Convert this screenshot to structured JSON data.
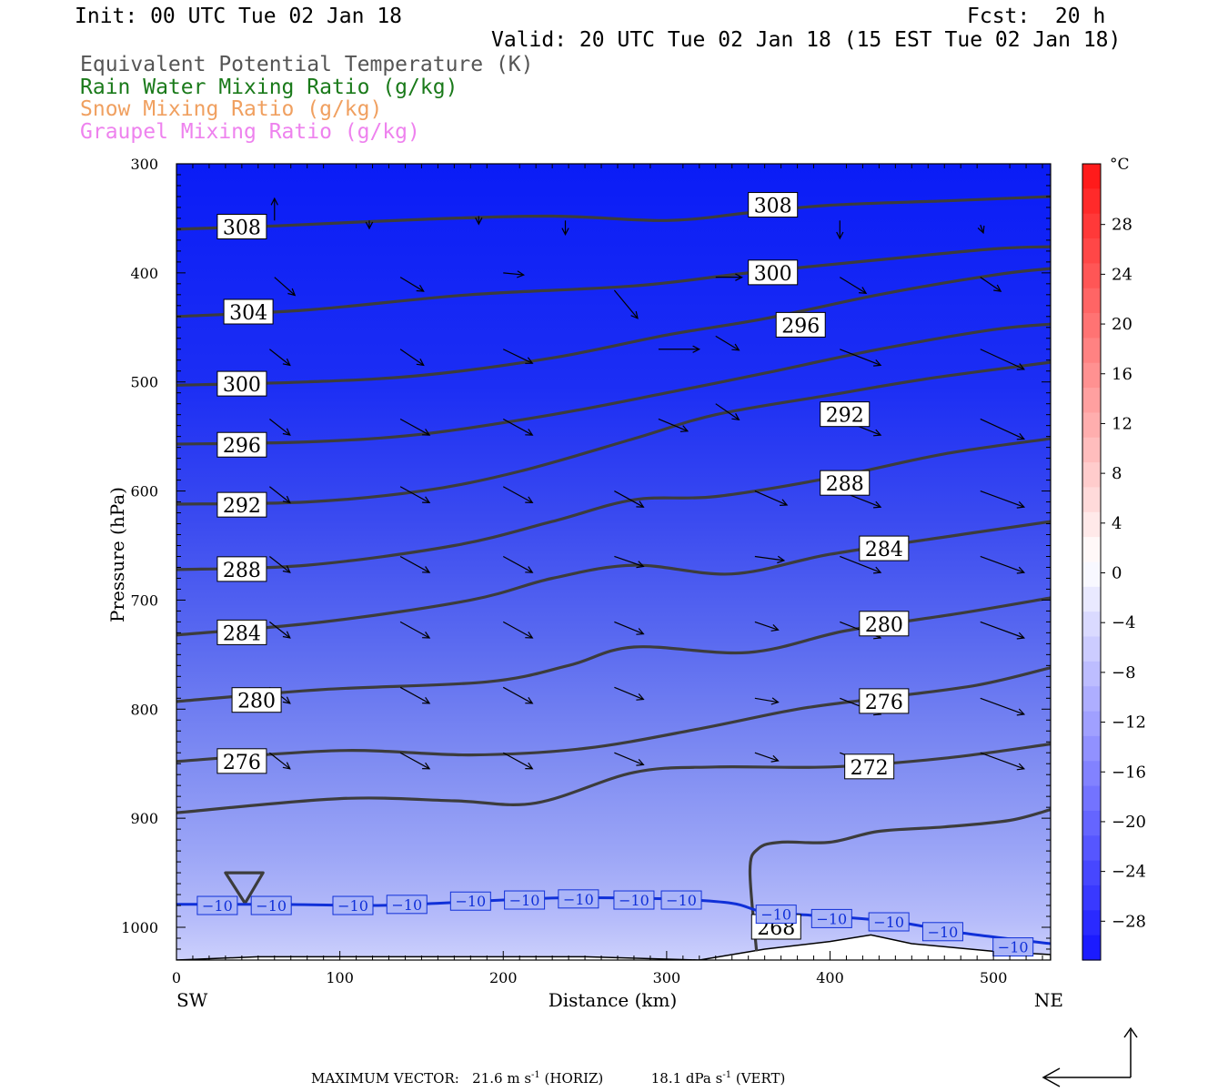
{
  "header": {
    "init": "Init: 00 UTC Tue 02 Jan 18",
    "fcst": "Fcst:  20 h",
    "valid": "Valid: 20 UTC Tue 02 Jan 18 (15 EST Tue 02 Jan 18)"
  },
  "legend": [
    {
      "label": "Equivalent Potential Temperature (K)",
      "color": "#555555"
    },
    {
      "label": "Rain Water Mixing Ratio (g/kg)",
      "color": "#1a7a1a"
    },
    {
      "label": "Snow Mixing Ratio (g/kg)",
      "color": "#f0a060"
    },
    {
      "label": "Graupel Mixing Ratio (g/kg)",
      "color": "#ee82ee"
    }
  ],
  "footer": {
    "max_vector_label": "MAXIMUM VECTOR:",
    "horiz_value": "21.6 m s",
    "horiz_unit": "(HORIZ)",
    "vert_value": "18.1 dPa s",
    "vert_unit": "(VERT)",
    "exponent": "-1"
  },
  "chart_data": {
    "type": "contour",
    "xlabel": "Distance (km)",
    "ylabel": "Pressure (hPa)",
    "xlim": [
      0,
      535
    ],
    "ylim": [
      1030,
      300
    ],
    "x_ticks": [
      0,
      100,
      200,
      300,
      400,
      500
    ],
    "y_ticks": [
      300,
      400,
      500,
      600,
      700,
      800,
      900,
      1000
    ],
    "endpoints": {
      "left": "SW",
      "right": "NE"
    },
    "colorbar": {
      "unit": "°C",
      "tick_labels": [
        "28",
        "24",
        "20",
        "16",
        "12",
        "8",
        "4",
        "0",
        "−4",
        "−8",
        "−12",
        "−16",
        "−20",
        "−24",
        "−28"
      ],
      "tick_values": [
        28,
        24,
        20,
        16,
        12,
        8,
        4,
        0,
        -4,
        -8,
        -12,
        -16,
        -20,
        -24,
        -28
      ],
      "range": [
        -32,
        32
      ]
    },
    "theta_e_contours": [
      {
        "value": 308,
        "label": "308",
        "points": [
          [
            0,
            360
          ],
          [
            60,
            357
          ],
          [
            150,
            351
          ],
          [
            230,
            348
          ],
          [
            300,
            352
          ],
          [
            350,
            345
          ],
          [
            400,
            338
          ],
          [
            470,
            334
          ],
          [
            535,
            330
          ]
        ]
      },
      {
        "value": 304,
        "label": "304",
        "points": [
          [
            0,
            440
          ],
          [
            80,
            434
          ],
          [
            180,
            420
          ],
          [
            280,
            412
          ],
          [
            350,
            400
          ],
          [
            430,
            388
          ],
          [
            500,
            378
          ],
          [
            535,
            376
          ]
        ]
      },
      {
        "value": 300,
        "label": "300",
        "points": [
          [
            0,
            503
          ],
          [
            80,
            500
          ],
          [
            150,
            494
          ],
          [
            230,
            478
          ],
          [
            300,
            457
          ],
          [
            360,
            442
          ],
          [
            430,
            420
          ],
          [
            500,
            402
          ],
          [
            535,
            396
          ]
        ]
      },
      {
        "value": 296,
        "label": "296",
        "points": [
          [
            0,
            557
          ],
          [
            80,
            555
          ],
          [
            150,
            548
          ],
          [
            230,
            530
          ],
          [
            300,
            510
          ],
          [
            360,
            492
          ],
          [
            430,
            470
          ],
          [
            500,
            452
          ],
          [
            535,
            447
          ]
        ]
      },
      {
        "value": 292,
        "label": "292",
        "points": [
          [
            0,
            612
          ],
          [
            80,
            610
          ],
          [
            150,
            600
          ],
          [
            210,
            582
          ],
          [
            280,
            552
          ],
          [
            330,
            530
          ],
          [
            400,
            512
          ],
          [
            460,
            497
          ],
          [
            535,
            482
          ]
        ]
      },
      {
        "value": 288,
        "label": "288",
        "points": [
          [
            0,
            672
          ],
          [
            80,
            668
          ],
          [
            170,
            650
          ],
          [
            230,
            628
          ],
          [
            280,
            608
          ],
          [
            330,
            605
          ],
          [
            400,
            588
          ],
          [
            470,
            566
          ],
          [
            535,
            552
          ]
        ]
      },
      {
        "value": 284,
        "label": "284",
        "points": [
          [
            0,
            732
          ],
          [
            90,
            720
          ],
          [
            180,
            700
          ],
          [
            230,
            680
          ],
          [
            280,
            668
          ],
          [
            340,
            676
          ],
          [
            400,
            658
          ],
          [
            480,
            640
          ],
          [
            535,
            628
          ]
        ]
      },
      {
        "value": 280,
        "label": "280",
        "points": [
          [
            0,
            793
          ],
          [
            90,
            782
          ],
          [
            190,
            775
          ],
          [
            240,
            760
          ],
          [
            280,
            743
          ],
          [
            350,
            748
          ],
          [
            410,
            728
          ],
          [
            480,
            712
          ],
          [
            535,
            698
          ]
        ]
      },
      {
        "value": 276,
        "label": "276",
        "points": [
          [
            0,
            848
          ],
          [
            100,
            838
          ],
          [
            180,
            842
          ],
          [
            250,
            836
          ],
          [
            320,
            818
          ],
          [
            380,
            800
          ],
          [
            430,
            790
          ],
          [
            490,
            778
          ],
          [
            535,
            762
          ]
        ]
      },
      {
        "value": 272,
        "label": "272",
        "points": [
          [
            0,
            895
          ],
          [
            100,
            882
          ],
          [
            170,
            884
          ],
          [
            220,
            886
          ],
          [
            280,
            858
          ],
          [
            330,
            853
          ],
          [
            400,
            853
          ],
          [
            470,
            845
          ],
          [
            535,
            832
          ]
        ]
      },
      {
        "value": 268,
        "label": "268",
        "points": [
          [
            0,
            960
          ],
          [
            30,
            950
          ],
          [
            53,
            950
          ],
          [
            42,
            978
          ],
          [
            30,
            950
          ]
        ]
      },
      {
        "value": 268,
        "label": "",
        "points": [
          [
            355,
            1022
          ],
          [
            351,
            948
          ],
          [
            356,
            928
          ],
          [
            370,
            922
          ],
          [
            400,
            922
          ],
          [
            430,
            912
          ],
          [
            470,
            908
          ],
          [
            510,
            902
          ],
          [
            535,
            892
          ]
        ]
      }
    ],
    "contour_labels": [
      {
        "text": "308",
        "x": 25,
        "p": 358
      },
      {
        "text": "308",
        "x": 350,
        "p": 338
      },
      {
        "text": "304",
        "x": 29,
        "p": 436
      },
      {
        "text": "300",
        "x": 350,
        "p": 400
      },
      {
        "text": "300",
        "x": 25,
        "p": 502
      },
      {
        "text": "296",
        "x": 367,
        "p": 448
      },
      {
        "text": "296",
        "x": 25,
        "p": 558
      },
      {
        "text": "292",
        "x": 394,
        "p": 530
      },
      {
        "text": "292",
        "x": 25,
        "p": 613
      },
      {
        "text": "288",
        "x": 394,
        "p": 593
      },
      {
        "text": "288",
        "x": 25,
        "p": 672
      },
      {
        "text": "284",
        "x": 418,
        "p": 653
      },
      {
        "text": "284",
        "x": 25,
        "p": 730
      },
      {
        "text": "280",
        "x": 418,
        "p": 722
      },
      {
        "text": "280",
        "x": 34,
        "p": 792
      },
      {
        "text": "276",
        "x": 418,
        "p": 793
      },
      {
        "text": "276",
        "x": 25,
        "p": 848
      },
      {
        "text": "272",
        "x": 409,
        "p": 853
      },
      {
        "text": "268",
        "x": 352,
        "p": 1000
      }
    ],
    "isotherm": {
      "value": -10,
      "label": "−10",
      "points": [
        [
          0,
          979
        ],
        [
          60,
          979
        ],
        [
          120,
          980
        ],
        [
          160,
          978
        ],
        [
          200,
          975
        ],
        [
          240,
          973
        ],
        [
          300,
          974
        ],
        [
          340,
          978
        ],
        [
          360,
          986
        ],
        [
          400,
          990
        ],
        [
          440,
          995
        ],
        [
          480,
          1005
        ],
        [
          535,
          1015
        ]
      ],
      "label_positions": [
        [
          25,
          980
        ],
        [
          58,
          980
        ],
        [
          108,
          980
        ],
        [
          141,
          979
        ],
        [
          180,
          976
        ],
        [
          213,
          975
        ],
        [
          246,
          974
        ],
        [
          280,
          975
        ],
        [
          309,
          975
        ],
        [
          367,
          988
        ],
        [
          401,
          992
        ],
        [
          436,
          995
        ],
        [
          469,
          1004
        ],
        [
          512,
          1018
        ]
      ]
    },
    "terrain": {
      "points": [
        [
          0,
          1030
        ],
        [
          50,
          1027
        ],
        [
          150,
          1027
        ],
        [
          250,
          1027
        ],
        [
          320,
          1030
        ],
        [
          360,
          1020
        ],
        [
          400,
          1013
        ],
        [
          425,
          1007
        ],
        [
          450,
          1015
        ],
        [
          500,
          1022
        ],
        [
          535,
          1025
        ]
      ]
    },
    "wind_vectors": [
      [
        60,
        352,
        0,
        22
      ],
      [
        118,
        352,
        0,
        -8
      ],
      [
        185,
        348,
        0,
        -8
      ],
      [
        238,
        352,
        0,
        -14
      ],
      [
        406,
        352,
        0,
        -18
      ],
      [
        492,
        356,
        2,
        -8
      ],
      [
        60,
        404,
        14,
        -18
      ],
      [
        137,
        404,
        16,
        -14
      ],
      [
        200,
        400,
        14,
        -2
      ],
      [
        268,
        416,
        16,
        -28
      ],
      [
        330,
        404,
        18,
        0
      ],
      [
        406,
        404,
        18,
        -16
      ],
      [
        492,
        404,
        14,
        -14
      ],
      [
        57,
        470,
        14,
        -16
      ],
      [
        137,
        470,
        16,
        -16
      ],
      [
        200,
        470,
        20,
        -14
      ],
      [
        295,
        470,
        28,
        0
      ],
      [
        330,
        458,
        16,
        -14
      ],
      [
        406,
        470,
        28,
        -16
      ],
      [
        492,
        470,
        30,
        -20
      ],
      [
        57,
        534,
        14,
        -16
      ],
      [
        137,
        534,
        20,
        -16
      ],
      [
        200,
        534,
        20,
        -16
      ],
      [
        295,
        534,
        20,
        -12
      ],
      [
        330,
        520,
        16,
        -16
      ],
      [
        406,
        534,
        28,
        -16
      ],
      [
        492,
        534,
        30,
        -20
      ],
      [
        57,
        596,
        14,
        -16
      ],
      [
        137,
        596,
        20,
        -16
      ],
      [
        200,
        596,
        20,
        -16
      ],
      [
        268,
        600,
        20,
        -16
      ],
      [
        354,
        600,
        22,
        -14
      ],
      [
        406,
        600,
        28,
        -16
      ],
      [
        492,
        600,
        30,
        -16
      ],
      [
        57,
        660,
        14,
        -16
      ],
      [
        137,
        660,
        20,
        -16
      ],
      [
        200,
        660,
        20,
        -16
      ],
      [
        268,
        660,
        20,
        -10
      ],
      [
        354,
        660,
        20,
        -4
      ],
      [
        406,
        660,
        28,
        -16
      ],
      [
        492,
        660,
        30,
        -16
      ],
      [
        57,
        720,
        14,
        -16
      ],
      [
        137,
        720,
        20,
        -16
      ],
      [
        200,
        720,
        20,
        -16
      ],
      [
        268,
        720,
        20,
        -12
      ],
      [
        354,
        720,
        16,
        -8
      ],
      [
        406,
        720,
        28,
        -16
      ],
      [
        492,
        720,
        30,
        -16
      ],
      [
        57,
        780,
        14,
        -16
      ],
      [
        137,
        780,
        20,
        -16
      ],
      [
        200,
        780,
        20,
        -16
      ],
      [
        268,
        780,
        20,
        -12
      ],
      [
        354,
        790,
        16,
        -4
      ],
      [
        406,
        790,
        28,
        -16
      ],
      [
        492,
        790,
        30,
        -16
      ],
      [
        57,
        840,
        14,
        -16
      ],
      [
        137,
        840,
        20,
        -16
      ],
      [
        200,
        840,
        20,
        -16
      ],
      [
        268,
        840,
        20,
        -12
      ],
      [
        354,
        840,
        16,
        -8
      ],
      [
        406,
        840,
        28,
        -16
      ],
      [
        492,
        840,
        30,
        -16
      ]
    ]
  }
}
